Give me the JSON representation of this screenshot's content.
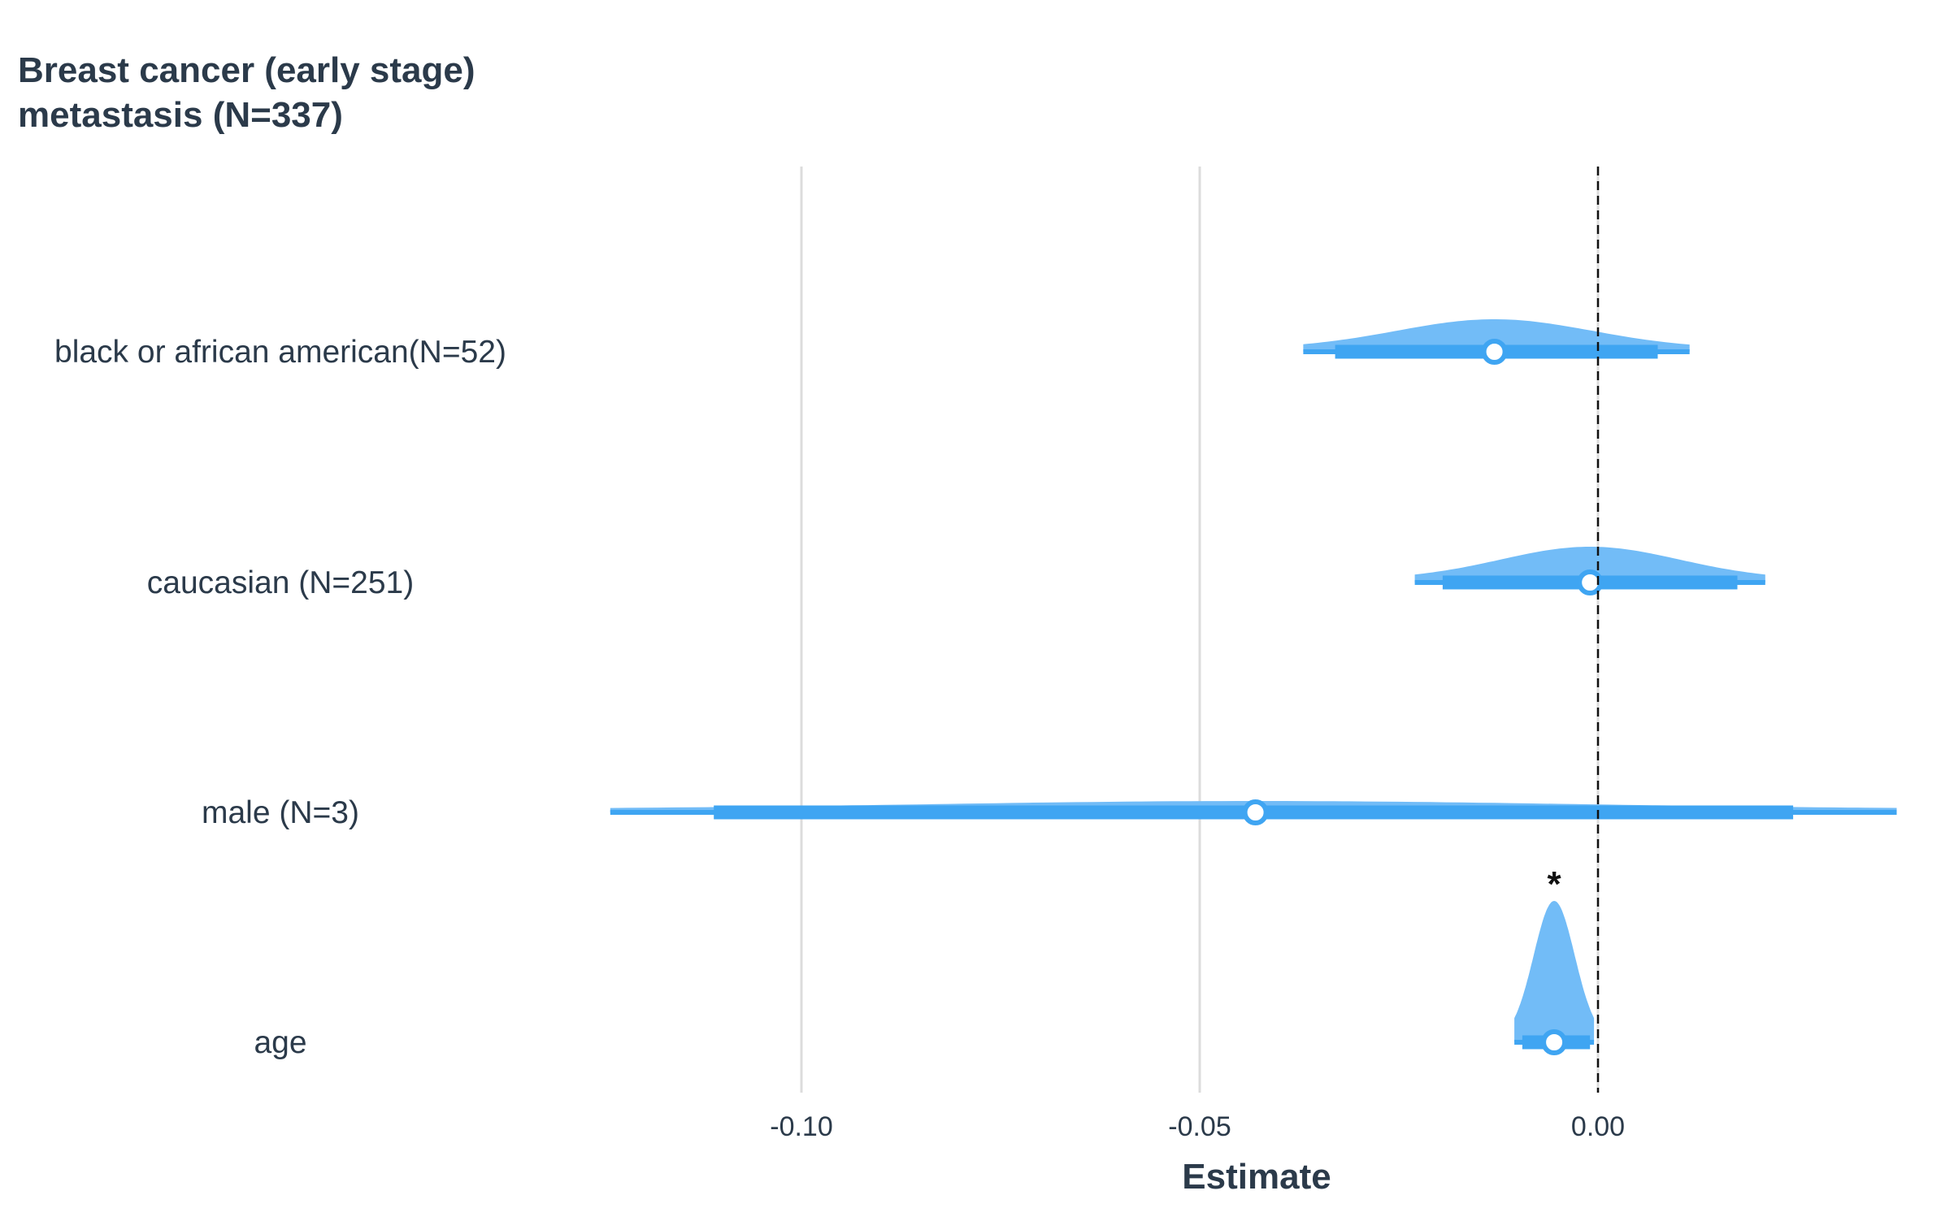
{
  "chart_data": {
    "type": "forest",
    "title_lines": [
      "Breast cancer  (early stage)",
      "metastasis (N=337)"
    ],
    "xlabel": "Estimate",
    "ylabel": "",
    "xlim": [
      -0.1,
      0.0
    ],
    "xticks": [
      -0.1,
      -0.05,
      0.0
    ],
    "xtick_labels": [
      "-0.10",
      "-0.05",
      "0.00"
    ],
    "grid": "vertical",
    "reference_line": 0.0,
    "color": "#3fa5f2",
    "density_color": "#72bcf7",
    "rows": [
      {
        "label": "black or african american(N=52)",
        "estimate": -0.013,
        "ci_inner": [
          -0.033,
          0.0075
        ],
        "ci_outer": [
          -0.037,
          0.0115
        ],
        "significant": false
      },
      {
        "label": "caucasian (N=251)",
        "estimate": -0.001,
        "ci_inner": [
          -0.0195,
          0.0175
        ],
        "ci_outer": [
          -0.023,
          0.021
        ],
        "significant": false
      },
      {
        "label": "male (N=3)",
        "estimate": -0.043,
        "ci_inner": [
          -0.111,
          0.0245
        ],
        "ci_outer": [
          -0.124,
          0.0375
        ],
        "significant": false
      },
      {
        "label": "age",
        "estimate": -0.0055,
        "ci_inner": [
          -0.0095,
          -0.001
        ],
        "ci_outer": [
          -0.0105,
          -0.0005
        ],
        "significant": true,
        "significance_mark": "*"
      }
    ]
  }
}
